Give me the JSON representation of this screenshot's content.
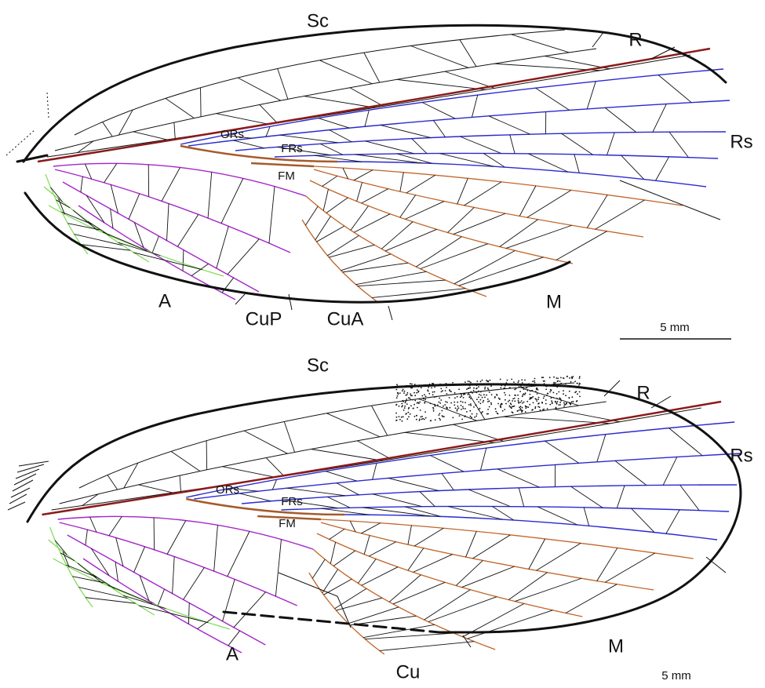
{
  "wings": [
    {
      "labels": {
        "sc": "Sc",
        "r": "R",
        "rs": "Rs",
        "ors": "ORs",
        "frs": "FRs",
        "fm": "FM",
        "a": "A",
        "cup": "CuP",
        "cua": "CuA",
        "m": "M"
      },
      "scale": "5 mm"
    },
    {
      "labels": {
        "sc": "Sc",
        "r": "R",
        "rs": "Rs",
        "ors": "ORs",
        "frs": "FRs",
        "fm": "FM",
        "a": "A",
        "cu": "Cu",
        "m": "M"
      },
      "scale": "5 mm"
    }
  ]
}
